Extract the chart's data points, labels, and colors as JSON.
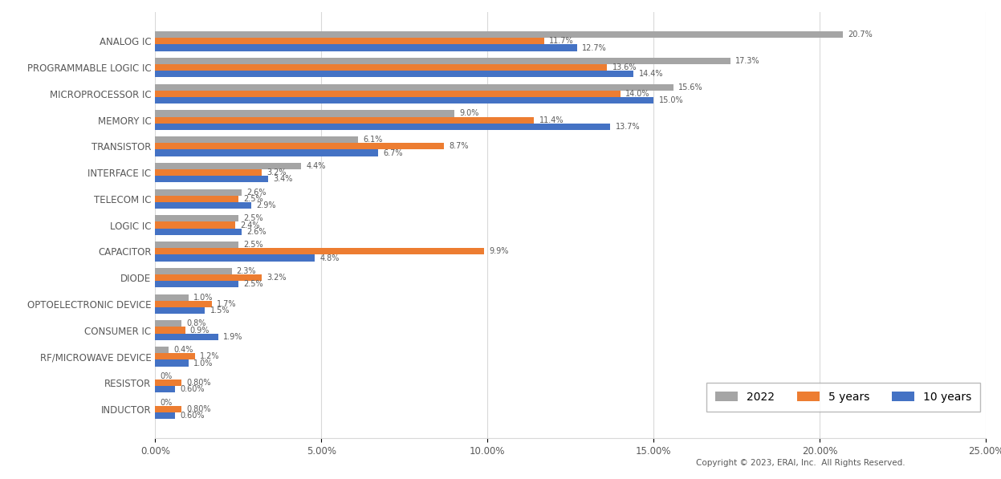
{
  "categories": [
    "ANALOG IC",
    "PROGRAMMABLE LOGIC IC",
    "MICROPROCESSOR IC",
    "MEMORY IC",
    "TRANSISTOR",
    "INTERFACE IC",
    "TELECOM IC",
    "LOGIC IC",
    "CAPACITOR",
    "DIODE",
    "OPTOELECTRONIC DEVICE",
    "CONSUMER IC",
    "RF/MICROWAVE DEVICE",
    "RESISTOR",
    "INDUCTOR"
  ],
  "values_2022": [
    20.7,
    17.3,
    15.6,
    9.0,
    6.1,
    4.4,
    2.6,
    2.5,
    2.5,
    2.3,
    1.0,
    0.8,
    0.4,
    0.0,
    0.0
  ],
  "values_5yr": [
    11.7,
    13.6,
    14.0,
    11.4,
    8.7,
    3.2,
    2.5,
    2.4,
    9.9,
    3.2,
    1.7,
    0.9,
    1.2,
    0.8,
    0.8
  ],
  "values_10yr": [
    12.7,
    14.4,
    15.0,
    13.7,
    6.7,
    3.4,
    2.9,
    2.6,
    4.8,
    2.5,
    1.5,
    1.9,
    1.0,
    0.6,
    0.6
  ],
  "labels_2022": [
    "20.7%",
    "17.3%",
    "15.6%",
    "9.0%",
    "6.1%",
    "4.4%",
    "2.6%",
    "2.5%",
    "2.5%",
    "2.3%",
    "1.0%",
    "0.8%",
    "0.4%",
    "0%",
    "0%"
  ],
  "labels_5yr": [
    "11.7%",
    "13.6%",
    "14.0%",
    "11.4%",
    "8.7%",
    "3.2%",
    "2.5%",
    "2.4%",
    "9.9%",
    "3.2%",
    "1.7%",
    "0.9%",
    "1.2%",
    "0.80%",
    "0.80%"
  ],
  "labels_10yr": [
    "12.7%",
    "14.4%",
    "15.0%",
    "13.7%",
    "6.7%",
    "3.4%",
    "2.9%",
    "2.6%",
    "4.8%",
    "2.5%",
    "1.5%",
    "1.9%",
    "1.0%",
    "0.60%",
    "0.60%"
  ],
  "color_2022": "#A5A5A5",
  "color_5yr": "#ED7D31",
  "color_10yr": "#4472C4",
  "xlim": [
    0,
    25
  ],
  "xticks": [
    0,
    5,
    10,
    15,
    20,
    25
  ],
  "xtick_labels": [
    "0.00%",
    "5.00%",
    "10.00%",
    "15.00%",
    "20.00%",
    "25.00%"
  ],
  "legend_labels": [
    "2022",
    "5 years",
    "10 years"
  ],
  "bar_height": 0.25,
  "background_color": "#FFFFFF",
  "label_fontsize": 7.0,
  "category_fontsize": 8.5,
  "axis_fontsize": 8.5
}
